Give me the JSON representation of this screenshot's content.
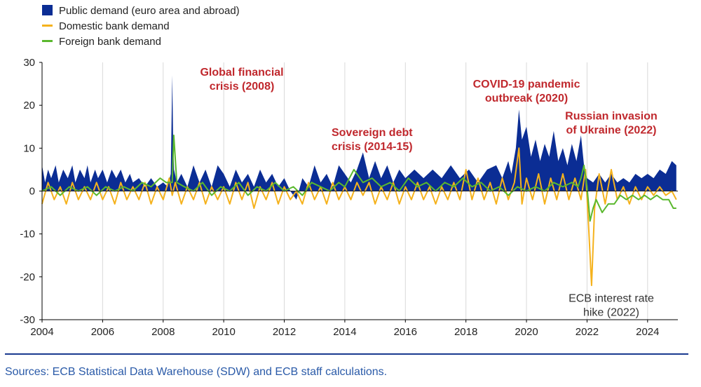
{
  "chart_data": {
    "type": "area",
    "xlim": [
      2004,
      2025
    ],
    "ylim": [
      -30,
      30
    ],
    "x_ticks": [
      2004,
      2006,
      2008,
      2010,
      2012,
      2014,
      2016,
      2018,
      2020,
      2022,
      2024
    ],
    "y_ticks": [
      -30,
      -20,
      -10,
      0,
      10,
      20,
      30
    ],
    "grid": "vertical",
    "legend_position": "top-left",
    "colors": {
      "public": "#0b2d94",
      "domestic": "#f5b21d",
      "foreign": "#5ab82e",
      "grid": "#d9d9d9",
      "axis": "#000000",
      "annotation": "#c0282d",
      "rule": "#1a3a8f",
      "source": "#2a5aa8"
    },
    "series": [
      {
        "name": "Public demand (euro area and abroad)",
        "kind": "area",
        "x": [
          2004.0,
          2004.1,
          2004.2,
          2004.3,
          2004.45,
          2004.55,
          2004.7,
          2004.85,
          2005.0,
          2005.1,
          2005.25,
          2005.4,
          2005.5,
          2005.6,
          2005.75,
          2005.85,
          2006.0,
          2006.15,
          2006.3,
          2006.45,
          2006.6,
          2006.75,
          2006.9,
          2007.0,
          2007.2,
          2007.4,
          2007.6,
          2007.8,
          2008.0,
          2008.15,
          2008.25,
          2008.3,
          2008.33,
          2008.36,
          2008.45,
          2008.6,
          2008.8,
          2009.0,
          2009.2,
          2009.4,
          2009.6,
          2009.8,
          2010.0,
          2010.2,
          2010.4,
          2010.6,
          2010.8,
          2011.0,
          2011.2,
          2011.4,
          2011.6,
          2011.8,
          2012.0,
          2012.2,
          2012.4,
          2012.6,
          2012.8,
          2013.0,
          2013.2,
          2013.4,
          2013.6,
          2013.8,
          2014.0,
          2014.2,
          2014.4,
          2014.6,
          2014.8,
          2015.0,
          2015.2,
          2015.4,
          2015.6,
          2015.8,
          2016.0,
          2016.3,
          2016.6,
          2016.9,
          2017.2,
          2017.5,
          2017.8,
          2018.1,
          2018.4,
          2018.7,
          2019.0,
          2019.2,
          2019.4,
          2019.5,
          2019.65,
          2019.75,
          2019.85,
          2020.0,
          2020.15,
          2020.3,
          2020.45,
          2020.6,
          2020.75,
          2020.9,
          2021.05,
          2021.2,
          2021.35,
          2021.5,
          2021.65,
          2021.8,
          2021.9,
          2022.0,
          2022.2,
          2022.4,
          2022.6,
          2022.8,
          2023.0,
          2023.2,
          2023.4,
          2023.6,
          2023.8,
          2024.0,
          2024.2,
          2024.4,
          2024.6,
          2024.8,
          2024.95
        ],
        "values": [
          6,
          2,
          5,
          3,
          6,
          2,
          5,
          3,
          6,
          2,
          5,
          3,
          6,
          2,
          5,
          3,
          5,
          2,
          5,
          3,
          5,
          2,
          4,
          2,
          3,
          1,
          3,
          1,
          2,
          1,
          4,
          27,
          12,
          5,
          2,
          4,
          1,
          6,
          2,
          5,
          1,
          6,
          4,
          1,
          5,
          2,
          4,
          1,
          5,
          2,
          4,
          1,
          3,
          0,
          -2,
          3,
          1,
          6,
          2,
          4,
          1,
          6,
          4,
          2,
          5,
          9,
          3,
          7,
          3,
          6,
          2,
          5,
          3,
          5,
          3,
          5,
          3,
          6,
          3,
          5,
          2,
          5,
          6,
          3,
          7,
          4,
          10,
          19,
          12,
          15,
          8,
          12,
          7,
          11,
          8,
          14,
          7,
          10,
          6,
          11,
          7,
          13,
          6,
          3,
          2,
          4,
          2,
          4,
          2,
          3,
          2,
          4,
          3,
          4,
          3,
          5,
          4,
          7,
          6
        ]
      },
      {
        "name": "Domestic bank demand",
        "kind": "line",
        "x": [
          2004.0,
          2004.2,
          2004.4,
          2004.6,
          2004.8,
          2005.0,
          2005.2,
          2005.4,
          2005.6,
          2005.8,
          2006.0,
          2006.2,
          2006.4,
          2006.6,
          2006.8,
          2007.0,
          2007.2,
          2007.4,
          2007.6,
          2007.8,
          2008.0,
          2008.2,
          2008.3,
          2008.4,
          2008.6,
          2008.8,
          2009.0,
          2009.2,
          2009.4,
          2009.6,
          2009.8,
          2010.0,
          2010.2,
          2010.4,
          2010.6,
          2010.8,
          2011.0,
          2011.2,
          2011.4,
          2011.6,
          2011.8,
          2012.0,
          2012.2,
          2012.4,
          2012.6,
          2012.8,
          2013.0,
          2013.2,
          2013.4,
          2013.6,
          2013.8,
          2014.0,
          2014.2,
          2014.4,
          2014.6,
          2014.8,
          2015.0,
          2015.2,
          2015.4,
          2015.6,
          2015.8,
          2016.0,
          2016.2,
          2016.4,
          2016.6,
          2016.8,
          2017.0,
          2017.2,
          2017.4,
          2017.6,
          2017.8,
          2018.0,
          2018.2,
          2018.4,
          2018.6,
          2018.8,
          2019.0,
          2019.2,
          2019.4,
          2019.6,
          2019.75,
          2019.85,
          2020.0,
          2020.2,
          2020.4,
          2020.6,
          2020.8,
          2021.0,
          2021.2,
          2021.4,
          2021.6,
          2021.8,
          2021.95,
          2022.05,
          2022.15,
          2022.25,
          2022.4,
          2022.6,
          2022.8,
          2023.0,
          2023.2,
          2023.4,
          2023.6,
          2023.8,
          2024.0,
          2024.2,
          2024.4,
          2024.6,
          2024.8,
          2024.95
        ],
        "values": [
          -3,
          2,
          -2,
          1,
          -3,
          2,
          -2,
          1,
          -2,
          2,
          -2,
          1,
          -3,
          2,
          -2,
          1,
          -2,
          2,
          -3,
          1,
          -2,
          3,
          -1,
          2,
          -3,
          1,
          -2,
          2,
          -3,
          1,
          -2,
          1,
          -3,
          2,
          -2,
          2,
          -4,
          1,
          -2,
          2,
          -3,
          1,
          -2,
          0,
          -3,
          2,
          -2,
          1,
          -3,
          2,
          -2,
          1,
          -2,
          2,
          -1,
          2,
          -3,
          1,
          -2,
          2,
          -3,
          1,
          -2,
          2,
          -2,
          1,
          -3,
          1,
          -2,
          2,
          -2,
          5,
          -2,
          3,
          -2,
          2,
          -3,
          3,
          -2,
          2,
          10,
          -3,
          3,
          -2,
          4,
          -3,
          3,
          -2,
          4,
          -2,
          3,
          -2,
          5,
          -8,
          -22,
          -4,
          4,
          -3,
          5,
          -2,
          1,
          -3,
          1,
          -2,
          1,
          -1,
          1,
          -1,
          0,
          -2
        ]
      },
      {
        "name": "Foreign bank demand",
        "kind": "line",
        "x": [
          2004.0,
          2004.3,
          2004.6,
          2004.9,
          2005.2,
          2005.5,
          2005.8,
          2006.1,
          2006.4,
          2006.7,
          2007.0,
          2007.3,
          2007.6,
          2007.9,
          2008.1,
          2008.3,
          2008.35,
          2008.45,
          2008.7,
          2009.0,
          2009.3,
          2009.6,
          2009.9,
          2010.2,
          2010.5,
          2010.8,
          2011.1,
          2011.4,
          2011.7,
          2012.0,
          2012.3,
          2012.6,
          2012.9,
          2013.2,
          2013.5,
          2013.8,
          2014.0,
          2014.3,
          2014.6,
          2014.9,
          2015.2,
          2015.5,
          2015.8,
          2016.1,
          2016.4,
          2016.7,
          2017.0,
          2017.3,
          2017.6,
          2017.9,
          2018.2,
          2018.5,
          2018.8,
          2019.1,
          2019.4,
          2019.7,
          2020.0,
          2020.3,
          2020.6,
          2020.9,
          2021.2,
          2021.5,
          2021.7,
          2021.8,
          2021.9,
          2022.0,
          2022.1,
          2022.2,
          2022.3,
          2022.5,
          2022.7,
          2022.9,
          2023.1,
          2023.3,
          2023.5,
          2023.7,
          2023.9,
          2024.1,
          2024.3,
          2024.5,
          2024.7,
          2024.85,
          2024.95
        ],
        "values": [
          0,
          1,
          -1,
          1,
          0,
          1,
          -1,
          1,
          0,
          1,
          0,
          2,
          1,
          3,
          2,
          2,
          13,
          2,
          1,
          0,
          2,
          -1,
          1,
          0,
          2,
          -1,
          1,
          0,
          2,
          0,
          1,
          -1,
          2,
          1,
          0,
          2,
          1,
          5,
          2,
          3,
          1,
          2,
          0,
          3,
          1,
          2,
          0,
          2,
          1,
          3,
          1,
          2,
          0,
          1,
          -1,
          1,
          0,
          1,
          0,
          2,
          1,
          2,
          1,
          3,
          6,
          1,
          -7,
          -4,
          -2,
          -5,
          -3,
          -3,
          -1,
          -2,
          -1,
          -2,
          -1,
          -2,
          -1,
          -2,
          -2,
          -4,
          -4
        ]
      }
    ],
    "annotations": [
      {
        "lines": [
          "Global financial",
          "crisis (2008)"
        ],
        "style": "red",
        "x": 2010.6,
        "y": 26.9
      },
      {
        "lines": [
          "Sovereign debt",
          "crisis (2014-15)"
        ],
        "style": "red",
        "x": 2014.9,
        "y": 12.8
      },
      {
        "lines": [
          "COVID-19 pandemic",
          "outbreak (2020)"
        ],
        "style": "red",
        "x": 2020.0,
        "y": 24.1
      },
      {
        "lines": [
          "Russian invasion",
          "of Ukraine (2022)"
        ],
        "style": "red",
        "x": 2022.8,
        "y": 16.7
      },
      {
        "lines": [
          "ECB interest rate",
          "hike (2022)"
        ],
        "style": "gray",
        "x": 2022.8,
        "y": -25.8
      }
    ]
  },
  "source_note": "Sources: ECB Statistical Data Warehouse (SDW) and ECB staff calculations."
}
